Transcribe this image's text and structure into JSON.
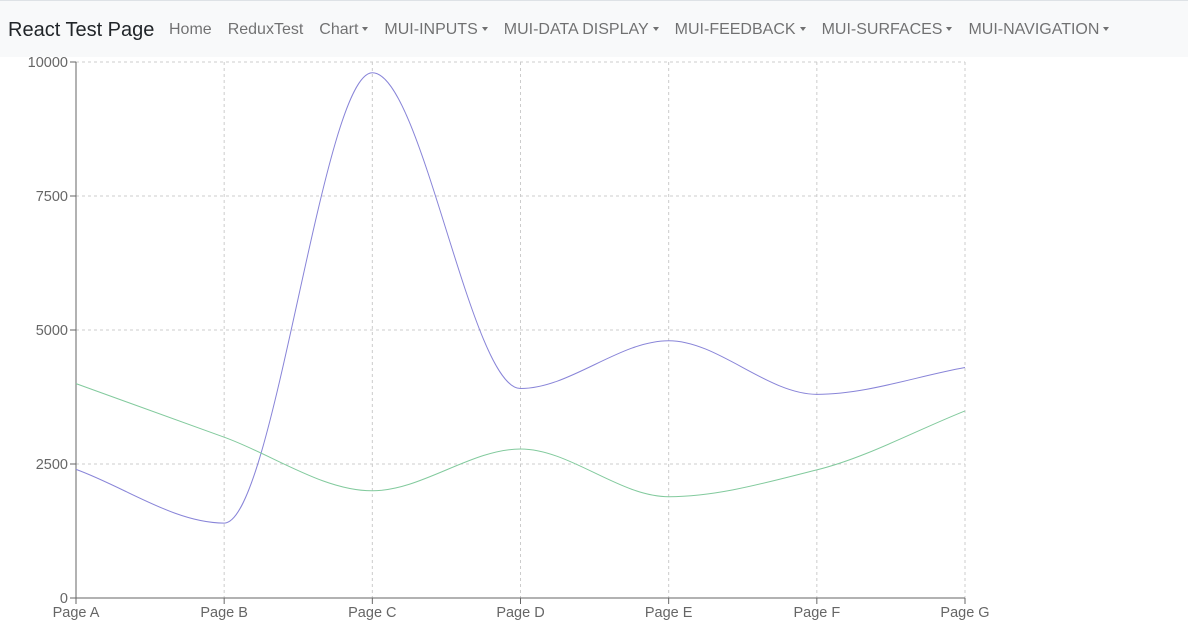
{
  "navbar": {
    "brand": "React Test Page",
    "items": [
      {
        "label": "Home",
        "dropdown": false
      },
      {
        "label": "ReduxTest",
        "dropdown": false
      },
      {
        "label": "Chart",
        "dropdown": true
      },
      {
        "label": "MUI-INPUTS",
        "dropdown": true
      },
      {
        "label": "MUI-DATA DISPLAY",
        "dropdown": true
      },
      {
        "label": "MUI-FEEDBACK",
        "dropdown": true
      },
      {
        "label": "MUI-SURFACES",
        "dropdown": true
      },
      {
        "label": "MUI-NAVIGATION",
        "dropdown": true
      }
    ]
  },
  "chart_data": {
    "type": "line",
    "categories": [
      "Page A",
      "Page B",
      "Page C",
      "Page D",
      "Page E",
      "Page F",
      "Page G"
    ],
    "series": [
      {
        "values": [
          2400,
          1398,
          9800,
          3908,
          4800,
          3800,
          4300
        ],
        "color": "#8884d8"
      },
      {
        "values": [
          4000,
          3000,
          2000,
          2780,
          1890,
          2390,
          3490
        ],
        "color": "#82ca9d"
      }
    ],
    "yticks": [
      0,
      2500,
      5000,
      7500,
      10000
    ],
    "ylim": [
      0,
      10000
    ],
    "grid": true,
    "curve": "monotone",
    "title": "",
    "xlabel": "",
    "ylabel": ""
  }
}
